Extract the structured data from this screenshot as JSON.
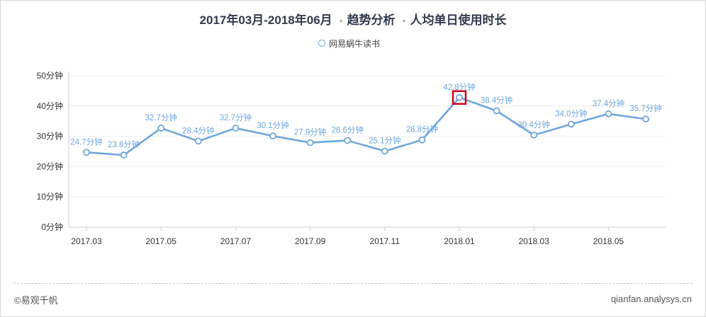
{
  "header": {
    "period": "2017年03月-2018年06月",
    "section": "趋势分析",
    "metric": "人均单日使用时长"
  },
  "colors": {
    "series": "#6fa6dc",
    "label": "#6fa6dc",
    "highlight_box": "#d0021b",
    "grid": "#eeeeee",
    "axis_text": "#333333"
  },
  "chart_data": {
    "type": "line",
    "title": "人均单日使用时长",
    "x": [
      "2017.03",
      "2017.04",
      "2017.05",
      "2017.06",
      "2017.07",
      "2017.08",
      "2017.09",
      "2017.10",
      "2017.11",
      "2017.12",
      "2018.01",
      "2018.02",
      "2018.03",
      "2018.04",
      "2018.05",
      "2018.06"
    ],
    "x_tick_labels": [
      "2017.03",
      "2017.05",
      "2017.07",
      "2017.09",
      "2017.11",
      "2018.01",
      "2018.03",
      "2018.05"
    ],
    "y_tick_labels": [
      "0分钟",
      "10分钟",
      "20分钟",
      "30分钟",
      "40分钟",
      "50分钟"
    ],
    "ylim": [
      0,
      50
    ],
    "series": [
      {
        "name": "网易蜗牛读书",
        "values": [
          24.7,
          23.8,
          32.7,
          28.4,
          32.7,
          30.1,
          27.9,
          28.6,
          25.1,
          28.8,
          42.8,
          38.4,
          30.4,
          34.0,
          37.4,
          35.7
        ],
        "labels": [
          "24.7分钟",
          "23.8分钟",
          "32.7分钟",
          "28.4分钟",
          "32.7分钟",
          "30.1分钟",
          "27.9分钟",
          "28.6分钟",
          "25.1分钟",
          "28.8分钟",
          "42.8分钟",
          "38.4分钟",
          "30.4分钟",
          "34.0分钟",
          "37.4分钟",
          "35.7分钟"
        ]
      }
    ],
    "highlighted_point": "2018.01",
    "grid": true,
    "legend_position": "top-center"
  },
  "footer": {
    "left": "©易观千帆",
    "right": "qianfan.analysys.cn"
  }
}
